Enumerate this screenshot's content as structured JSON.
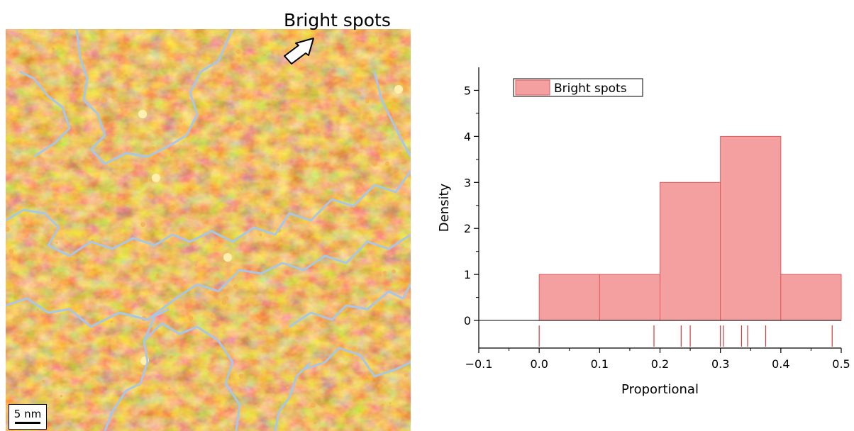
{
  "figure": {
    "callout": "Bright spots",
    "scale_bar": "5 nm"
  },
  "colors": {
    "afm_dark": "#8a3a0c",
    "afm_mid": "#c9631b",
    "afm_light": "#f4b050",
    "afm_bright": "#fff0b0",
    "boundary": "#a9c6e4",
    "bar_fill": "#f4a0a0",
    "bar_edge": "#e05a5a",
    "rug": "#d53a3a"
  },
  "chart_data": {
    "type": "bar",
    "bins": [
      [
        0.0,
        0.1
      ],
      [
        0.1,
        0.2
      ],
      [
        0.2,
        0.3
      ],
      [
        0.3,
        0.4
      ],
      [
        0.4,
        0.5
      ]
    ],
    "values": [
      1,
      1,
      3,
      4,
      1
    ],
    "rug_values": [
      0.0,
      0.19,
      0.235,
      0.25,
      0.3,
      0.305,
      0.335,
      0.345,
      0.375,
      0.485
    ],
    "series": [
      {
        "name": "Bright spots",
        "values": [
          1,
          1,
          3,
          4,
          1
        ]
      }
    ],
    "xlabel": "Proportional",
    "ylabel": "Density",
    "xlim": [
      -0.1,
      0.5
    ],
    "ylim": [
      -0.6,
      5.5
    ],
    "xticks": [
      "−0.1",
      "0.0",
      "0.1",
      "0.2",
      "0.3",
      "0.4",
      "0.5"
    ],
    "yticks": [
      "0",
      "1",
      "2",
      "3",
      "4",
      "5"
    ],
    "legend_position": "top-left"
  }
}
